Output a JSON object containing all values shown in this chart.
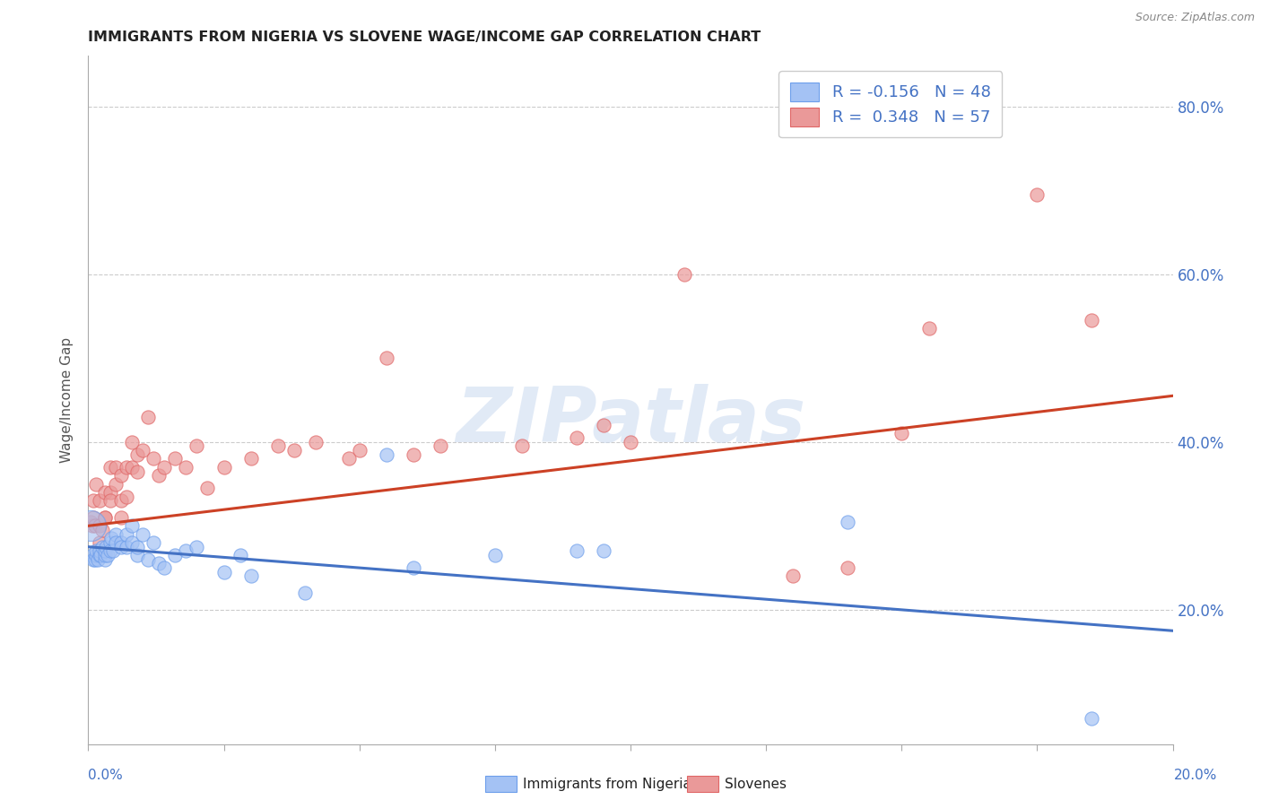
{
  "title": "IMMIGRANTS FROM NIGERIA VS SLOVENE WAGE/INCOME GAP CORRELATION CHART",
  "source": "Source: ZipAtlas.com",
  "ylabel": "Wage/Income Gap",
  "watermark": "ZIPatlas",
  "blue_color": "#a4c2f4",
  "pink_color": "#ea9999",
  "blue_edge_color": "#6d9eeb",
  "pink_edge_color": "#e06666",
  "blue_line_color": "#4472c4",
  "pink_line_color": "#cc4125",
  "blue_scatter_x": [
    0.0008,
    0.001,
    0.0012,
    0.0015,
    0.0015,
    0.0018,
    0.002,
    0.002,
    0.0022,
    0.0025,
    0.003,
    0.003,
    0.003,
    0.0032,
    0.0035,
    0.004,
    0.004,
    0.0042,
    0.0045,
    0.005,
    0.005,
    0.006,
    0.006,
    0.007,
    0.007,
    0.008,
    0.008,
    0.009,
    0.009,
    0.01,
    0.011,
    0.012,
    0.013,
    0.014,
    0.016,
    0.018,
    0.02,
    0.025,
    0.028,
    0.03,
    0.04,
    0.055,
    0.06,
    0.075,
    0.09,
    0.095,
    0.14,
    0.185
  ],
  "blue_scatter_y": [
    0.265,
    0.26,
    0.26,
    0.265,
    0.27,
    0.26,
    0.265,
    0.27,
    0.265,
    0.275,
    0.26,
    0.265,
    0.27,
    0.275,
    0.265,
    0.28,
    0.27,
    0.285,
    0.27,
    0.29,
    0.28,
    0.28,
    0.275,
    0.275,
    0.29,
    0.28,
    0.3,
    0.265,
    0.275,
    0.29,
    0.26,
    0.28,
    0.255,
    0.25,
    0.265,
    0.27,
    0.275,
    0.245,
    0.265,
    0.24,
    0.22,
    0.385,
    0.25,
    0.265,
    0.27,
    0.27,
    0.305,
    0.07
  ],
  "pink_scatter_x": [
    0.0005,
    0.0008,
    0.001,
    0.001,
    0.0012,
    0.0015,
    0.002,
    0.002,
    0.002,
    0.0025,
    0.003,
    0.003,
    0.003,
    0.004,
    0.004,
    0.004,
    0.005,
    0.005,
    0.006,
    0.006,
    0.006,
    0.007,
    0.007,
    0.008,
    0.008,
    0.009,
    0.009,
    0.01,
    0.011,
    0.012,
    0.013,
    0.014,
    0.016,
    0.018,
    0.02,
    0.022,
    0.025,
    0.03,
    0.035,
    0.038,
    0.042,
    0.048,
    0.05,
    0.055,
    0.06,
    0.065,
    0.08,
    0.09,
    0.095,
    0.1,
    0.11,
    0.13,
    0.14,
    0.15,
    0.155,
    0.175,
    0.185
  ],
  "pink_scatter_y": [
    0.305,
    0.3,
    0.33,
    0.31,
    0.3,
    0.35,
    0.33,
    0.3,
    0.28,
    0.295,
    0.31,
    0.34,
    0.31,
    0.34,
    0.37,
    0.33,
    0.35,
    0.37,
    0.31,
    0.33,
    0.36,
    0.335,
    0.37,
    0.37,
    0.4,
    0.385,
    0.365,
    0.39,
    0.43,
    0.38,
    0.36,
    0.37,
    0.38,
    0.37,
    0.395,
    0.345,
    0.37,
    0.38,
    0.395,
    0.39,
    0.4,
    0.38,
    0.39,
    0.5,
    0.385,
    0.395,
    0.395,
    0.405,
    0.42,
    0.4,
    0.6,
    0.24,
    0.25,
    0.41,
    0.535,
    0.695,
    0.545
  ],
  "blue_trendline_x": [
    0.0,
    0.2
  ],
  "blue_trendline_y": [
    0.275,
    0.175
  ],
  "pink_trendline_x": [
    0.0,
    0.2
  ],
  "pink_trendline_y": [
    0.3,
    0.455
  ],
  "xmin": 0.0,
  "xmax": 0.2,
  "ymin": 0.04,
  "ymax": 0.86,
  "yticks": [
    0.2,
    0.4,
    0.6,
    0.8
  ],
  "ytick_labels": [
    "20.0%",
    "40.0%",
    "60.0%",
    "80.0%"
  ],
  "legend_r_blue": "-0.156",
  "legend_n_blue": "48",
  "legend_r_pink": "0.348",
  "legend_n_pink": "57",
  "dot_size": 120
}
